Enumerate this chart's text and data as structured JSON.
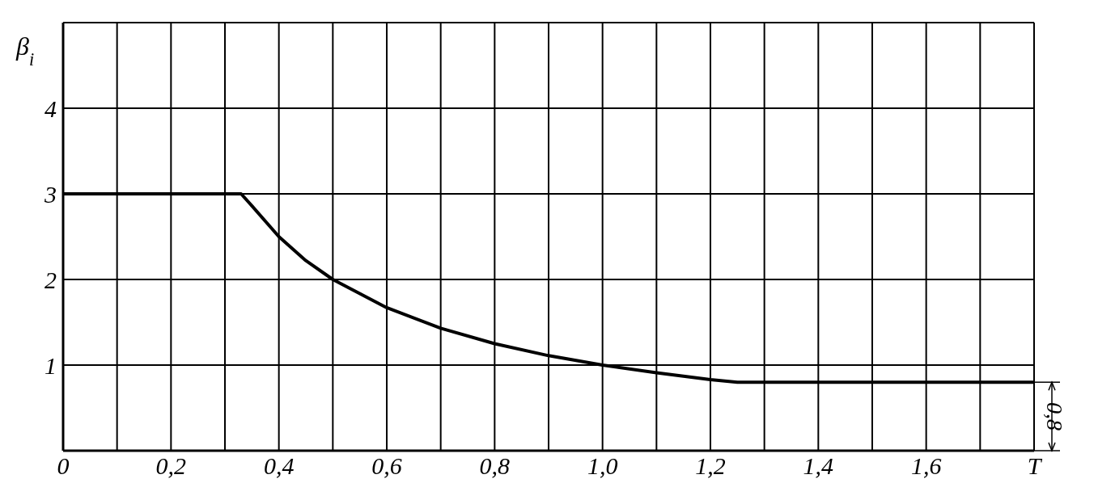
{
  "chart_data": {
    "type": "line",
    "ylabel": "β$_{i}$",
    "x": [
      0,
      0.33,
      0.35,
      0.4,
      0.45,
      0.5,
      0.6,
      0.7,
      0.8,
      0.9,
      1.0,
      1.1,
      1.2,
      1.25,
      1.8
    ],
    "series": [
      {
        "color": "#000000",
        "values": [
          3,
          3,
          2.86,
          2.5,
          2.22,
          2,
          1.67,
          1.43,
          1.25,
          1.11,
          1.0,
          0.91,
          0.83,
          0.8,
          0.8
        ]
      }
    ],
    "xlim": [
      0,
      1.8
    ],
    "xticks": [
      0,
      {
        "value": 0.1,
        "label": null
      },
      {
        "value": 0.2,
        "label": "0,2"
      },
      {
        "value": 0.3,
        "label": null
      },
      {
        "value": 0.4,
        "label": "0,4"
      },
      {
        "value": 0.5,
        "label": null
      },
      {
        "value": 0.6,
        "label": "0,6"
      },
      {
        "value": 0.7,
        "label": null
      },
      {
        "value": 0.8,
        "label": "0,8"
      },
      {
        "value": 0.9,
        "label": null
      },
      {
        "value": 1.0,
        "label": "1,0"
      },
      {
        "value": 1.1,
        "label": null
      },
      {
        "value": 1.2,
        "label": "1,2"
      },
      {
        "value": 1.3,
        "label": null
      },
      {
        "value": 1.4,
        "label": "1,4"
      },
      {
        "value": 1.5,
        "label": null
      },
      {
        "value": 1.6,
        "label": "1,6"
      },
      {
        "value": 1.7,
        "label": null
      },
      {
        "value": 1.8,
        "label": "T"
      }
    ],
    "ylim": [
      0,
      5
    ],
    "yticks": [
      {
        "value": 0,
        "label": null
      },
      1,
      2,
      3,
      4,
      {
        "value": 5,
        "label": null
      }
    ],
    "grid": true,
    "marker": "none",
    "line_style": "solid",
    "legend": false,
    "annotations": [
      "0,8"
    ]
  }
}
